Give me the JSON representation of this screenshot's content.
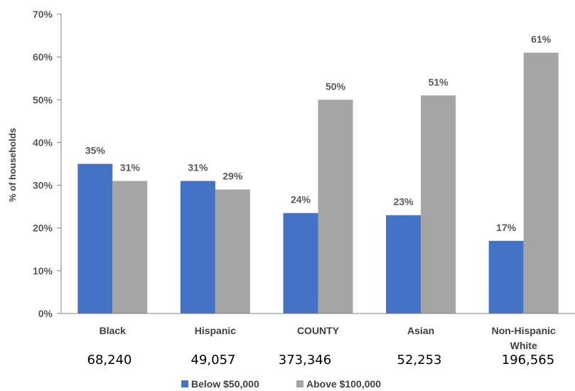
{
  "chart_data": {
    "type": "bar",
    "ylabel": "% of households",
    "xlabel": "",
    "ylim": [
      0,
      70
    ],
    "ytick_step": 10,
    "ytick_suffix": "%",
    "grid": false,
    "legend_position": "bottom",
    "categories": [
      [
        "Black"
      ],
      [
        "Hispanic"
      ],
      [
        "COUNTY"
      ],
      [
        "Asian"
      ],
      [
        "Non-Hispanic",
        "White"
      ]
    ],
    "counts": [
      "68,240",
      "49,057",
      "373,346",
      "52,253",
      "196,565"
    ],
    "series": [
      {
        "name": "Below $50,000",
        "color": "#4472C4",
        "values": [
          35,
          31,
          23.5,
          23,
          17
        ],
        "labels": [
          "35%",
          "31%",
          "24%",
          "23%",
          "17%"
        ]
      },
      {
        "name": "Above $100,000",
        "color": "#A5A5A5",
        "values": [
          31,
          29,
          50,
          51,
          61
        ],
        "labels": [
          "31%",
          "29%",
          "50%",
          "51%",
          "61%"
        ]
      }
    ]
  }
}
